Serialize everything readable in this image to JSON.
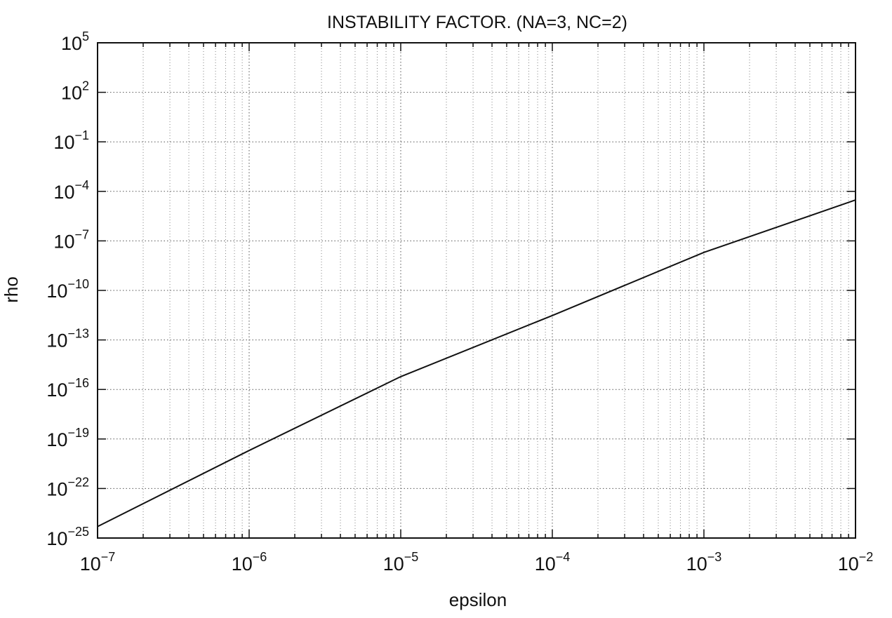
{
  "chart_data": {
    "type": "line",
    "title": "INSTABILITY FACTOR. (NA=3, NC=2)",
    "xlabel": "epsilon",
    "ylabel": "rho",
    "x_scale": "log",
    "y_scale": "log",
    "xlim": [
      1e-07,
      0.01
    ],
    "ylim": [
      1e-25,
      100000
    ],
    "grid": true,
    "x_ticks": [
      {
        "base": "10",
        "exp": "−7",
        "value": 1e-07
      },
      {
        "base": "10",
        "exp": "−6",
        "value": 1e-06
      },
      {
        "base": "10",
        "exp": "−5",
        "value": 1e-05
      },
      {
        "base": "10",
        "exp": "−4",
        "value": 0.0001
      },
      {
        "base": "10",
        "exp": "−3",
        "value": 0.001
      },
      {
        "base": "10",
        "exp": "−2",
        "value": 0.01
      }
    ],
    "y_ticks": [
      {
        "base": "10",
        "exp": "5",
        "value": 100000.0
      },
      {
        "base": "10",
        "exp": "2",
        "value": 100.0
      },
      {
        "base": "10",
        "exp": "−1",
        "value": 0.1
      },
      {
        "base": "10",
        "exp": "−4",
        "value": 0.0001
      },
      {
        "base": "10",
        "exp": "−7",
        "value": 1e-07
      },
      {
        "base": "10",
        "exp": "−10",
        "value": 1e-10
      },
      {
        "base": "10",
        "exp": "−13",
        "value": 1e-13
      },
      {
        "base": "10",
        "exp": "−16",
        "value": 1e-16
      },
      {
        "base": "10",
        "exp": "−19",
        "value": 1e-19
      },
      {
        "base": "10",
        "exp": "−22",
        "value": 1e-22
      },
      {
        "base": "10",
        "exp": "−25",
        "value": 1e-25
      }
    ],
    "series": [
      {
        "x": [
          1e-07,
          1e-06,
          1e-05,
          0.0001,
          0.001,
          0.01
        ],
        "y": [
          5e-25,
          2e-20,
          6e-16,
          3e-12,
          2e-08,
          3e-05
        ]
      }
    ]
  }
}
